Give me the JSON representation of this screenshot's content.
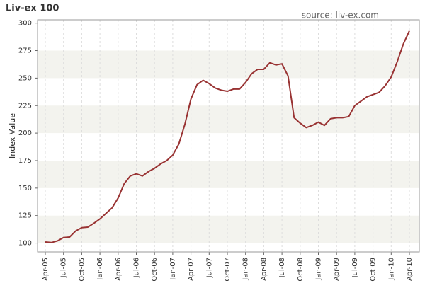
{
  "chart_data": {
    "type": "line",
    "title": "Liv-ex 100",
    "source": "source: liv-ex.com",
    "y_label": "Index Value",
    "categories": [
      "Apr-05",
      null,
      null,
      "Jul-05",
      null,
      null,
      "Oct-05",
      null,
      null,
      "Jan-06",
      null,
      null,
      "Apr-06",
      null,
      null,
      "Jul-06",
      null,
      null,
      "Oct-06",
      null,
      null,
      "Jan-07",
      null,
      null,
      "Apr-07",
      null,
      null,
      "Jul-07",
      null,
      null,
      "Oct-07",
      null,
      null,
      "Jan-08",
      null,
      null,
      "Apr-08",
      null,
      null,
      "Jul-08",
      null,
      null,
      "Oct-08",
      null,
      null,
      "Jan-09",
      null,
      null,
      "Apr-09",
      null,
      null,
      "Jul-09",
      null,
      null,
      "Oct-09",
      null,
      null,
      "Jan-10",
      null,
      null,
      "Apr-10"
    ],
    "series": [
      {
        "name": "Liv-ex 100",
        "color": "#993333",
        "values": [
          101,
          100.5,
          102,
          105,
          105.5,
          111,
          114,
          114.5,
          118,
          122,
          127,
          132,
          141,
          154,
          161,
          163,
          161,
          165,
          168,
          172,
          175,
          180,
          190,
          208,
          231,
          244,
          248,
          245,
          241,
          239,
          238,
          240,
          240,
          246,
          254,
          258,
          258,
          264,
          262,
          263,
          252,
          214,
          209,
          205,
          207,
          210,
          207,
          213,
          214,
          214,
          215,
          225,
          229,
          233,
          235,
          237,
          243,
          251,
          265,
          281,
          293
        ]
      }
    ],
    "ylim": [
      92,
      303
    ],
    "yticks": [
      100,
      125,
      150,
      175,
      200,
      225,
      250,
      275,
      300
    ],
    "grid": true
  }
}
